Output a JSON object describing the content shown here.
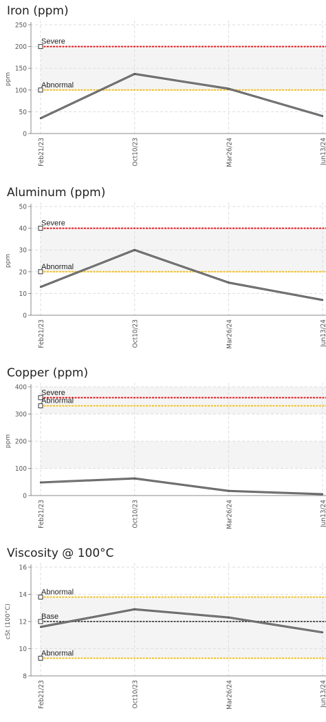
{
  "x_labels": [
    "Feb21/23",
    "Oct10/23",
    "Mar26/24",
    "Jun13/24"
  ],
  "chart_data": [
    {
      "type": "line",
      "title": "Iron (ppm)",
      "ylabel": "ppm",
      "ylim": [
        0,
        250
      ],
      "yticks": [
        0,
        50,
        100,
        150,
        200,
        250
      ],
      "categories": [
        "Feb21/23",
        "Oct10/23",
        "Mar26/24",
        "Jun13/24"
      ],
      "series": [
        {
          "values": [
            35,
            137,
            103,
            40
          ]
        }
      ],
      "limits": [
        {
          "label": "Severe",
          "value": 200,
          "color": "#e8181c"
        },
        {
          "label": "Abnormal",
          "value": 100,
          "color": "#f2c01e"
        }
      ],
      "bands": [
        [
          100,
          200
        ]
      ]
    },
    {
      "type": "line",
      "title": "Aluminum (ppm)",
      "ylabel": "ppm",
      "ylim": [
        0,
        50
      ],
      "yticks": [
        0,
        10,
        20,
        30,
        40,
        50
      ],
      "categories": [
        "Feb21/23",
        "Oct10/23",
        "Mar26/24",
        "Jun13/24"
      ],
      "series": [
        {
          "values": [
            13,
            30,
            15,
            7
          ]
        }
      ],
      "limits": [
        {
          "label": "Severe",
          "value": 40,
          "color": "#e8181c"
        },
        {
          "label": "Abnormal",
          "value": 20,
          "color": "#f2c01e"
        }
      ],
      "bands": [
        [
          20,
          40
        ]
      ]
    },
    {
      "type": "line",
      "title": "Copper (ppm)",
      "ylabel": "ppm",
      "ylim": [
        0,
        400
      ],
      "yticks": [
        0,
        100,
        200,
        300,
        400
      ],
      "categories": [
        "Feb21/23",
        "Oct10/23",
        "Mar26/24",
        "Jun13/24"
      ],
      "series": [
        {
          "values": [
            48,
            63,
            17,
            5
          ]
        }
      ],
      "limits": [
        {
          "label": "Severe",
          "value": 360,
          "color": "#e8181c"
        },
        {
          "label": "Abnormal",
          "value": 330,
          "color": "#f2c01e"
        }
      ],
      "bands": [
        [
          100,
          200
        ],
        [
          300,
          400
        ]
      ]
    },
    {
      "type": "line",
      "title": "Viscosity @ 100°C",
      "ylabel": "cSt (100°C)",
      "ylim": [
        8,
        16
      ],
      "yticks": [
        8,
        10,
        12,
        14,
        16
      ],
      "categories": [
        "Feb21/23",
        "Oct10/23",
        "Mar26/24",
        "Jun13/24"
      ],
      "series": [
        {
          "values": [
            11.6,
            12.9,
            12.3,
            11.2
          ]
        }
      ],
      "limits": [
        {
          "label": "Abnormal",
          "value": 13.8,
          "color": "#f2c01e"
        },
        {
          "label": "Base",
          "value": 12,
          "color": "#555555"
        },
        {
          "label": "Abnormal",
          "value": 9.3,
          "color": "#f2c01e"
        }
      ],
      "bands": [
        [
          9.3,
          13.8
        ]
      ]
    }
  ]
}
